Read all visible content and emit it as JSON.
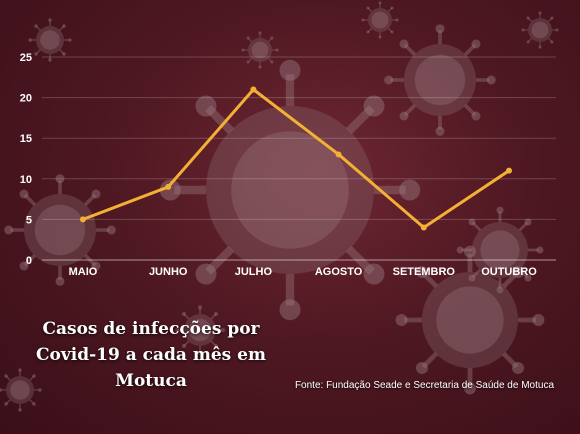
{
  "chart_data": {
    "type": "line",
    "categories": [
      "MAIO",
      "JUNHO",
      "JULHO",
      "AGOSTO",
      "SETEMBRO",
      "OUTUBRO"
    ],
    "values": [
      5,
      9,
      21,
      13,
      4,
      11
    ],
    "yticks": [
      "0",
      "5",
      "10",
      "15",
      "20",
      "25"
    ],
    "ylim": [
      0,
      25
    ],
    "grid": true,
    "line_color": "#f2b134",
    "title": "Casos de infecções por Covid-19 a cada mês em Motuca",
    "source": "Fonte: Fundação Seade e Secretaria de Saúde de Motuca"
  }
}
